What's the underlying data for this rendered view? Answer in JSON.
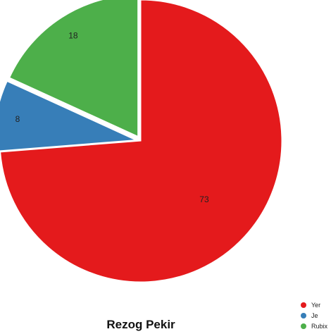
{
  "chart_data": {
    "type": "pie",
    "title": "Rezog Pekir",
    "slices": [
      {
        "label": "Yer",
        "value": 73,
        "color": "#e41a1c"
      },
      {
        "label": "Je",
        "value": 8,
        "color": "#377eb8"
      },
      {
        "label": "Rubix",
        "value": 18,
        "color": "#4daf4a"
      }
    ],
    "legend_position": "bottom-right",
    "exploded": true
  }
}
